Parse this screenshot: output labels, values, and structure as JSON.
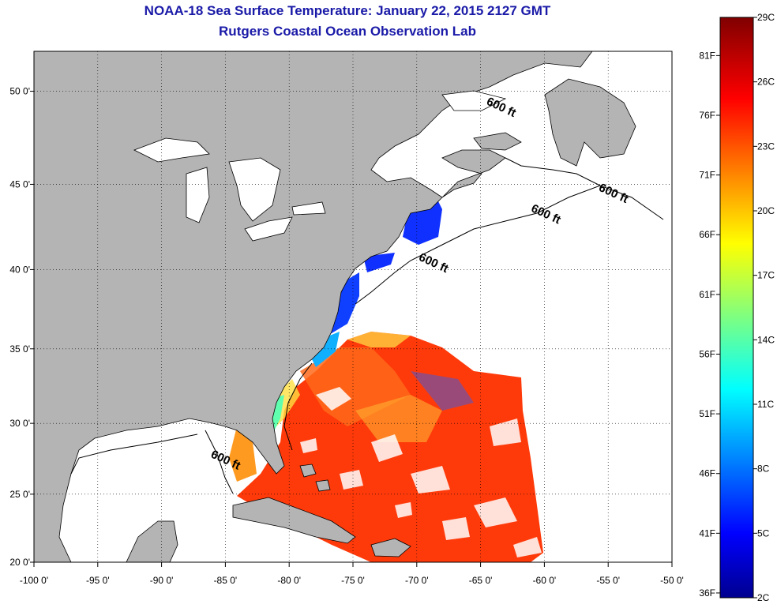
{
  "title": "NOAA-18 Sea Surface Temperature:  January 22, 2015 2127 GMT",
  "subtitle": "Rutgers Coastal Ocean Observation Lab",
  "map": {
    "lon_range": [
      -100,
      -50
    ],
    "lat_range": [
      20,
      52
    ],
    "lon_ticks": [
      -100,
      -95,
      -90,
      -85,
      -80,
      -75,
      -70,
      -65,
      -60,
      -55,
      -50
    ],
    "lon_tick_labels": [
      "-100 0'",
      "-95 0'",
      "-90 0'",
      "-85 0'",
      "-80 0'",
      "-75 0'",
      "-70 0'",
      "-65 0'",
      "-60 0'",
      "-55 0'",
      "-50 0'"
    ],
    "lat_ticks": [
      20,
      25,
      30,
      35,
      40,
      45,
      50
    ],
    "lat_tick_labels": [
      "20 0'",
      "25 0'",
      "30 0'",
      "35 0'",
      "40 0'",
      "45 0'",
      "50 0'"
    ],
    "grid": true,
    "land_color": "#b4b4b4",
    "no_data_color": "#ffffff",
    "contour_labels": [
      {
        "text": "600 ft",
        "lon": -63.5,
        "lat": 49.0
      },
      {
        "text": "600 ft",
        "lon": -54.7,
        "lat": 44.3
      },
      {
        "text": "600 ft",
        "lon": -60.0,
        "lat": 43.1
      },
      {
        "text": "600 ft",
        "lon": -68.8,
        "lat": 40.2
      },
      {
        "text": "600 ft",
        "lon": -85.1,
        "lat": 27.2
      }
    ]
  },
  "colorbar": {
    "min_c": 2,
    "max_c": 29,
    "celsius_labels": [
      {
        "c": 2,
        "label": "2C"
      },
      {
        "c": 5,
        "label": "5C"
      },
      {
        "c": 8,
        "label": "8C"
      },
      {
        "c": 11,
        "label": "11C"
      },
      {
        "c": 14,
        "label": "14C"
      },
      {
        "c": 17,
        "label": "17C"
      },
      {
        "c": 20,
        "label": "20C"
      },
      {
        "c": 23,
        "label": "23C"
      },
      {
        "c": 26,
        "label": "26C"
      },
      {
        "c": 29,
        "label": "29C"
      }
    ],
    "fahrenheit_labels": [
      {
        "f": 36,
        "label": "36F"
      },
      {
        "f": 41,
        "label": "41F"
      },
      {
        "f": 46,
        "label": "46F"
      },
      {
        "f": 51,
        "label": "51F"
      },
      {
        "f": 56,
        "label": "56F"
      },
      {
        "f": 61,
        "label": "61F"
      },
      {
        "f": 66,
        "label": "66F"
      },
      {
        "f": 71,
        "label": "71F"
      },
      {
        "f": 76,
        "label": "76F"
      },
      {
        "f": 81,
        "label": "81F"
      }
    ],
    "colors": [
      "#00008f",
      "#0000ff",
      "#0080ff",
      "#00ffff",
      "#80ff80",
      "#ffff00",
      "#ff8000",
      "#ff0000",
      "#800000"
    ]
  }
}
